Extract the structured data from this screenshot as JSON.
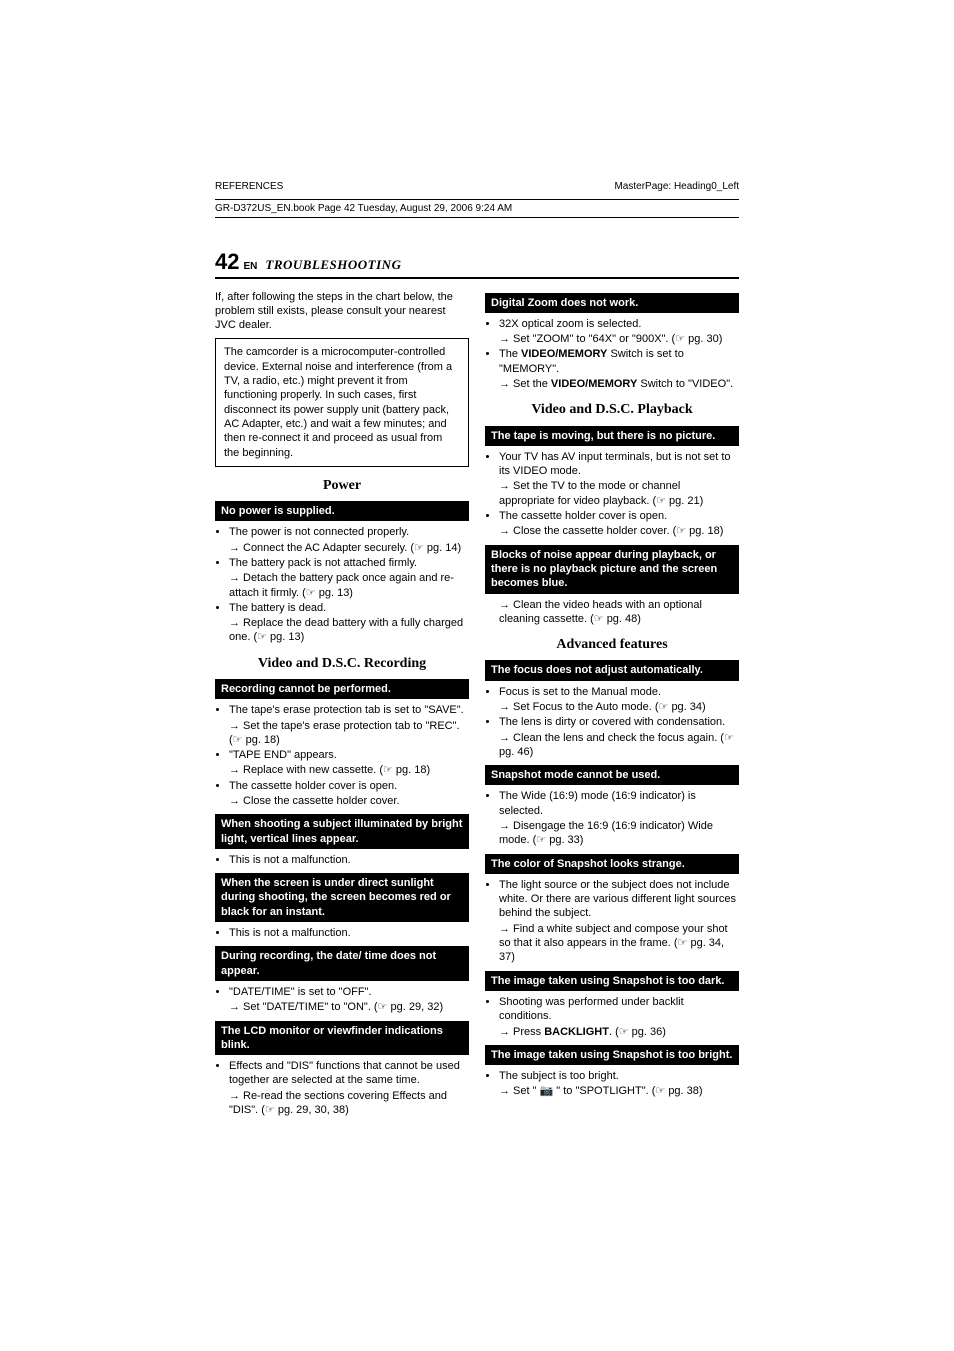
{
  "top": {
    "left": "REFERENCES",
    "right": "MasterPage: Heading0_Left"
  },
  "bookline": "GR-D372US_EN.book  Page 42  Tuesday, August 29, 2006  9:24 AM",
  "header": {
    "pagenum": "42",
    "ensub": "EN",
    "title": "TROUBLESHOOTING"
  },
  "intro": "If, after following the steps in the chart below, the problem still exists, please consult your nearest JVC dealer.",
  "warnbox": "The camcorder is a microcomputer-controlled device. External noise and interference (from a TV, a radio, etc.) might prevent it from functioning properly. In such cases, first disconnect its power supply unit (battery pack, AC Adapter, etc.) and wait a few minutes; and then re-connect it and proceed as usual from the beginning.",
  "power": {
    "title": "Power",
    "q1": "No power is supplied.",
    "b1": "The power is not connected properly.",
    "a1": "Connect the AC Adapter securely. (☞ pg. 14)",
    "b2": "The battery pack is not attached firmly.",
    "a2": "Detach the battery pack once again and re-attach it firmly. (☞ pg. 13)",
    "b3": "The battery is dead.",
    "a3": "Replace the dead battery with a fully charged one. (☞ pg. 13)"
  },
  "rec": {
    "title": "Video and D.S.C. Recording",
    "q1": "Recording cannot be performed.",
    "b1": "The tape's erase protection tab is set to \"SAVE\".",
    "a1": "Set the tape's erase protection tab to \"REC\". (☞ pg. 18)",
    "b2": "\"TAPE END\" appears.",
    "a2": "Replace with new cassette. (☞ pg. 18)",
    "b3": "The cassette holder cover is open.",
    "a3": "Close the cassette holder cover.",
    "q2": "When shooting a subject illuminated by bright light, vertical lines appear.",
    "b4": "This is not a malfunction.",
    "q3": "When the screen is under direct sunlight during shooting, the screen becomes red or black for an instant.",
    "b5": "This is not a malfunction.",
    "q4": "During recording, the date/ time does not appear.",
    "b6": "\"DATE/TIME\" is set to \"OFF\".",
    "a4": "Set \"DATE/TIME\" to \"ON\". (☞ pg. 29, 32)",
    "q5": "The LCD monitor or viewfinder indications blink.",
    "b7": "Effects and \"DIS\" functions that cannot be used together are selected at the same time.",
    "a5": "Re-read the sections covering Effects and \"DIS\". (☞ pg. 29, 30, 38)"
  },
  "dzoom": {
    "q1": "Digital Zoom does not work.",
    "b1": "32X optical zoom is selected.",
    "a1": "Set \"ZOOM\" to \"64X\" or \"900X\". (☞ pg. 30)",
    "b2a": "The ",
    "b2b": "VIDEO/MEMORY",
    "b2c": " Switch is set to \"MEMORY\".",
    "a2a": "Set the ",
    "a2b": "VIDEO/MEMORY",
    "a2c": " Switch to \"VIDEO\"."
  },
  "play": {
    "title": "Video and D.S.C. Playback",
    "q1": "The tape is moving, but there is no picture.",
    "b1": "Your TV has AV input terminals, but is not set to its VIDEO mode.",
    "a1": "Set the TV to the mode or channel appropriate for video playback. (☞ pg. 21)",
    "b2": "The cassette holder cover is open.",
    "a2": "Close the cassette holder cover. (☞ pg. 18)",
    "q2": "Blocks of noise appear during playback, or there is no playback picture and the screen becomes blue.",
    "a3": "Clean the video heads with an optional cleaning cassette. (☞ pg. 48)"
  },
  "adv": {
    "title": "Advanced features",
    "q1": "The focus does not adjust automatically.",
    "b1": "Focus is set to the Manual mode.",
    "a1": "Set Focus to the Auto mode. (☞ pg. 34)",
    "b2": "The lens is dirty or covered with condensation.",
    "a2": "Clean the lens and check the focus again. (☞ pg. 46)",
    "q2": "Snapshot mode cannot be used.",
    "b3": "The Wide (16:9) mode (16:9 indicator) is selected.",
    "a3": "Disengage the 16:9 (16:9 indicator) Wide mode. (☞ pg. 33)",
    "q3": "The color of Snapshot looks strange.",
    "b4": "The light source or the subject does not include white. Or there are various different light sources behind the subject.",
    "a4": "Find a white subject and compose your shot so that it also appears in the frame. (☞ pg. 34, 37)",
    "q4": "The image taken using Snapshot is too dark.",
    "b5": "Shooting was performed under backlit conditions.",
    "a5a": "Press ",
    "a5b": "BACKLIGHT",
    "a5c": ". (☞ pg. 36)",
    "q5": "The image taken using Snapshot is too bright.",
    "b6": "The subject is too bright.",
    "a6": "Set \" 📷 \" to \"SPOTLIGHT\". (☞ pg. 38)"
  }
}
